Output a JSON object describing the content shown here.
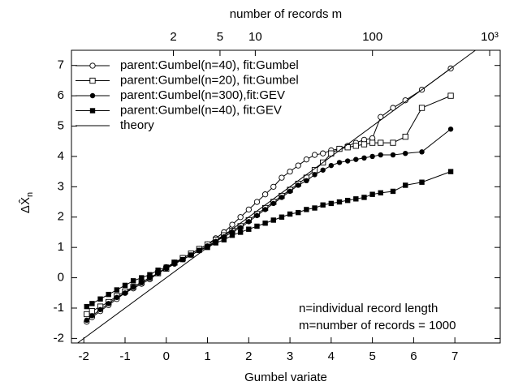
{
  "chart_data": {
    "type": "scatter",
    "x_label": "Gumbel variate",
    "x2_label": "number of records m",
    "y_label": "ΔX̂",
    "y_label_sub": "n",
    "annotations": [
      "n=individual record length",
      "m=number of records = 1000"
    ],
    "xlim": [
      -2.3,
      8.1
    ],
    "xticks": [
      -2,
      -1,
      0,
      1,
      2,
      3,
      4,
      5,
      6,
      7
    ],
    "ylim": [
      -2.15,
      7.5
    ],
    "yticks": [
      -2,
      -1,
      0,
      1,
      2,
      3,
      4,
      5,
      6,
      7
    ],
    "x2lim": [
      0.27,
      1230
    ],
    "x2log": true,
    "x2ticks": [
      2,
      5,
      10,
      100,
      {
        "value": 1000,
        "label": "10³"
      }
    ],
    "legend": "top-left",
    "x": [
      -1.93,
      -1.8,
      -1.6,
      -1.4,
      -1.2,
      -1.0,
      -0.8,
      -0.6,
      -0.4,
      -0.2,
      0,
      0.2,
      0.4,
      0.6,
      0.8,
      1.0,
      1.2,
      1.4,
      1.6,
      1.8,
      2.0,
      2.2,
      2.4,
      2.6,
      2.8,
      3.0,
      3.2,
      3.4,
      3.6,
      3.8,
      4.0,
      4.2,
      4.4,
      4.6,
      4.8,
      5.0,
      5.2,
      5.5,
      5.8,
      6.2,
      6.9
    ],
    "series": [
      {
        "name": "parent:Gumbel(n=40),  fit:Gumbel",
        "color": "#000000",
        "marker": "circle-open",
        "values": [
          -1.45,
          -1.3,
          -1.1,
          -0.9,
          -0.7,
          -0.5,
          -0.35,
          -0.2,
          -0.05,
          0.15,
          0.35,
          0.5,
          0.65,
          0.8,
          0.95,
          1.1,
          1.3,
          1.5,
          1.75,
          2.0,
          2.25,
          2.5,
          2.75,
          3.0,
          3.3,
          3.5,
          3.7,
          3.9,
          4.05,
          4.1,
          4.2,
          4.25,
          4.35,
          4.45,
          4.55,
          4.6,
          5.3,
          5.6,
          5.85,
          6.2,
          6.9
        ]
      },
      {
        "name": "parent:Gumbel(n=20),  fit:Gumbel",
        "color": "#000000",
        "marker": "square-open",
        "values": [
          -1.2,
          -1.1,
          -0.95,
          -0.8,
          -0.6,
          -0.45,
          -0.3,
          -0.15,
          0.0,
          0.15,
          0.3,
          0.5,
          0.65,
          0.8,
          0.95,
          1.1,
          1.25,
          1.4,
          1.55,
          1.7,
          1.9,
          2.1,
          2.3,
          2.5,
          2.7,
          2.9,
          3.1,
          3.3,
          3.55,
          3.8,
          4.1,
          4.25,
          4.3,
          4.35,
          4.4,
          4.45,
          4.45,
          4.45,
          4.65,
          5.6,
          6.0
        ]
      },
      {
        "name": "parent:Gumbel(n=300),fit:GEV",
        "color": "#000000",
        "marker": "circle",
        "values": [
          -1.4,
          -1.25,
          -1.05,
          -0.85,
          -0.65,
          -0.5,
          -0.3,
          -0.15,
          0.0,
          0.15,
          0.3,
          0.45,
          0.6,
          0.75,
          0.9,
          1.05,
          1.2,
          1.35,
          1.5,
          1.65,
          1.85,
          2.05,
          2.25,
          2.45,
          2.65,
          2.85,
          3.05,
          3.2,
          3.4,
          3.55,
          3.7,
          3.8,
          3.85,
          3.9,
          3.95,
          4.0,
          4.05,
          4.05,
          4.1,
          4.15,
          4.9
        ]
      },
      {
        "name": "parent:Gumbel(n=40),  fit:GEV",
        "color": "#000000",
        "marker": "square",
        "values": [
          -0.95,
          -0.85,
          -0.7,
          -0.55,
          -0.4,
          -0.25,
          -0.1,
          0.0,
          0.1,
          0.25,
          0.35,
          0.5,
          0.6,
          0.75,
          0.9,
          1.0,
          1.15,
          1.25,
          1.4,
          1.5,
          1.6,
          1.7,
          1.8,
          1.9,
          2.0,
          2.1,
          2.15,
          2.25,
          2.3,
          2.4,
          2.45,
          2.5,
          2.55,
          2.6,
          2.65,
          2.75,
          2.8,
          2.85,
          3.05,
          3.15,
          3.5
        ]
      },
      {
        "name": "theory",
        "color": "#000000",
        "marker": "none",
        "x": [
          -2.15,
          7.5
        ],
        "values": [
          -2.15,
          7.5
        ]
      }
    ]
  }
}
